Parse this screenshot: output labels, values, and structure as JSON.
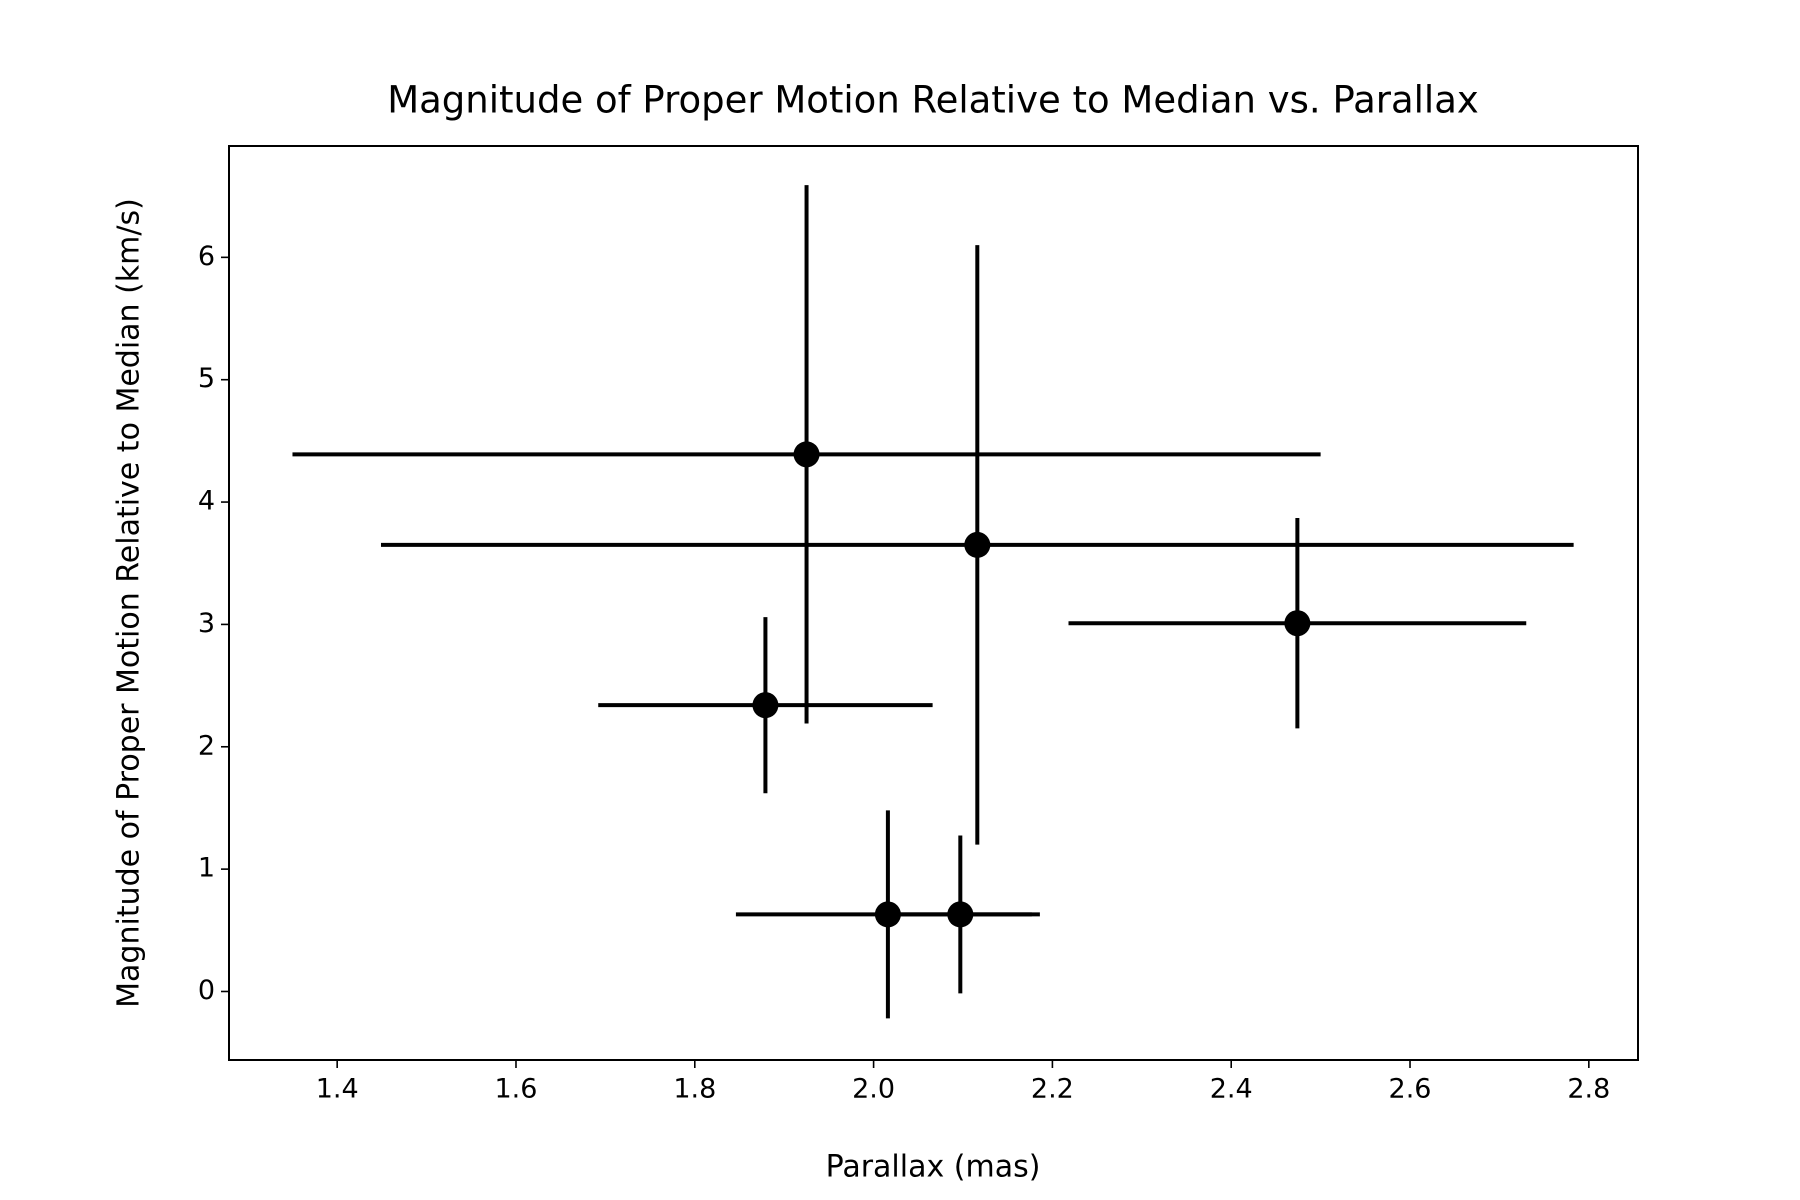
{
  "chart_data": {
    "type": "errorbar",
    "title": "Magnitude of Proper Motion Relative to Median vs. Parallax",
    "x_label": "Parallax (mas)",
    "y_label": "Magnitude of Proper Motion Relative to Median (km/s)",
    "series": [
      {
        "color": "#000000",
        "x": [
          1.925,
          2.116,
          2.474,
          1.879,
          2.016,
          2.097
        ],
        "values": [
          4.39,
          3.65,
          3.01,
          2.34,
          0.63,
          0.63
        ],
        "xerr": [
          0.575,
          0.667,
          0.256,
          0.187,
          0.17,
          0.08
        ],
        "yerr": [
          2.2,
          2.45,
          0.86,
          0.72,
          0.85,
          0.645
        ]
      }
    ],
    "xlim": [
      1.279,
      2.855
    ],
    "ylim": [
      -0.56,
      6.91
    ],
    "xticks": [
      1.4,
      1.6,
      1.8,
      {
        "value": 2,
        "label": "2.0"
      },
      2.2,
      2.4,
      2.6,
      2.8
    ],
    "yticks": [
      0,
      1,
      2,
      3,
      4,
      5,
      6
    ]
  }
}
